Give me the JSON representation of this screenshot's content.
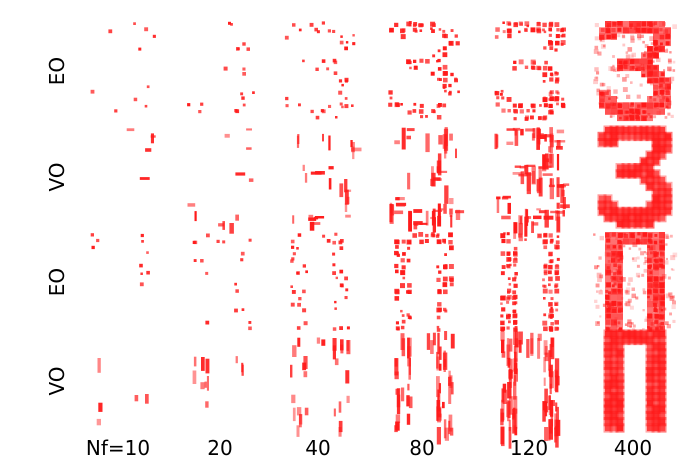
{
  "rows": [
    {
      "label": "EO",
      "shape": "three",
      "pattern": "dots"
    },
    {
      "label": "VO",
      "shape": "three",
      "pattern": "streaks"
    },
    {
      "label": "EO",
      "shape": "trouser",
      "pattern": "dots"
    },
    {
      "label": "VO",
      "shape": "trouser",
      "pattern": "streaks"
    }
  ],
  "columns": [
    {
      "label": "Nf=10",
      "nf": 10
    },
    {
      "label": "20",
      "nf": 20
    },
    {
      "label": "40",
      "nf": 40
    },
    {
      "label": "80",
      "nf": 80
    },
    {
      "label": "120",
      "nf": 120
    },
    {
      "label": "400",
      "nf": 400
    }
  ],
  "colors": {
    "mark": "#ff1a1a",
    "background": "#ffffff",
    "text": "#000000"
  }
}
